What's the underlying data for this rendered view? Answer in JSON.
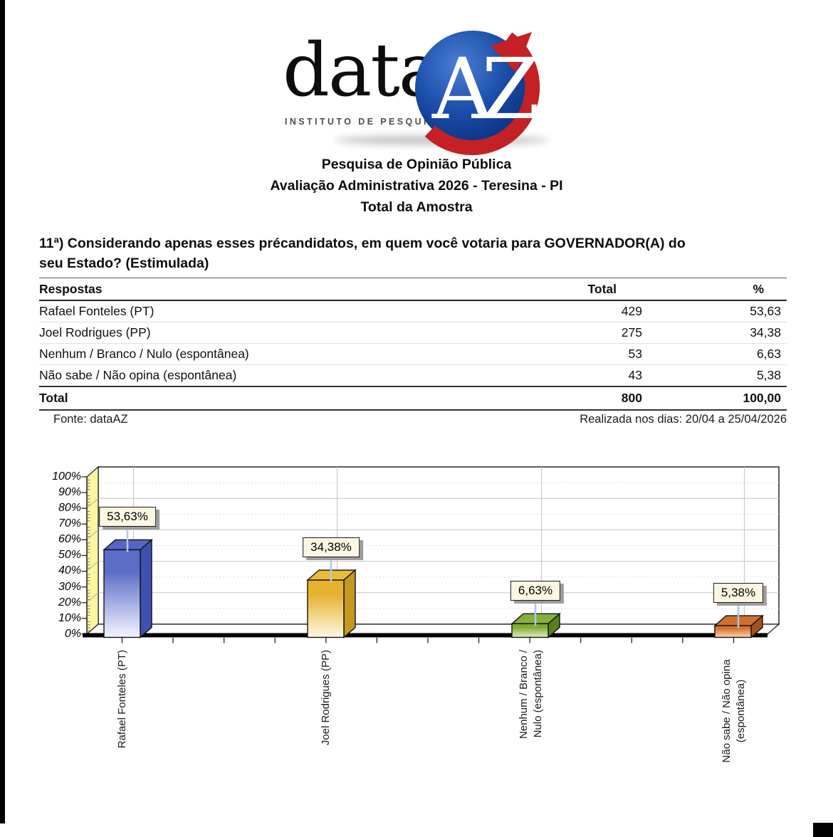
{
  "logo": {
    "brand_prefix": "data",
    "brand_suffix": "AZ",
    "tagline": "INSTITUTO DE PESQUISA",
    "circle_color": "#11409B",
    "arrow_color": "#C42127"
  },
  "header": {
    "line1": "Pesquisa de Opinião Pública",
    "line2": "Avaliação Administrativa 2026 - Teresina - PI",
    "line3": "Total da Amostra"
  },
  "question": {
    "text": "11ª) Considerando apenas esses précandidatos, em quem você votaria para GOVERNADOR(A) do\nseu Estado? (Estimulada)"
  },
  "table": {
    "headers": {
      "respostas": "Respostas",
      "total": "Total",
      "pct": "%"
    },
    "rows": [
      {
        "label": "Rafael Fonteles (PT)",
        "total": "429",
        "pct": "53,63"
      },
      {
        "label": "Joel Rodrigues (PP)",
        "total": "275",
        "pct": "34,38"
      },
      {
        "label": "Nenhum / Branco / Nulo (espontânea)",
        "total": "53",
        "pct": "6,63"
      },
      {
        "label": "Não sabe / Não opina (espontânea)",
        "total": "43",
        "pct": "5,38"
      }
    ],
    "total_row": {
      "label": "Total",
      "total": "800",
      "pct": "100,00"
    }
  },
  "footer": {
    "source": "Fonte: dataAZ",
    "dates": "Realizada nos dias: 20/04 a 25/04/2026"
  },
  "chart_data": {
    "type": "bar",
    "style": "3d",
    "title": "",
    "categories": [
      "Rafael Fonteles (PT)",
      "Joel Rodrigues (PP)",
      "Nenhum / Branco / Nulo (espontânea)",
      "Não sabe / Não opina (espontânea)"
    ],
    "categories_display": [
      "Rafael Fonteles (PT)",
      "Joel Rodrigues (PP)",
      "Nenhum / Branco /\nNulo (espontânea)",
      "Não sabe / Não opina\n(espontânea)"
    ],
    "values": [
      53.63,
      34.38,
      6.63,
      5.38
    ],
    "value_labels": [
      "53,63%",
      "34,38%",
      "6,63%",
      "5,38%"
    ],
    "xlabel": "",
    "ylabel": "",
    "ylim": [
      0,
      100
    ],
    "ytick_step": 10,
    "ytick_labels": [
      "100%",
      "90%",
      "80%",
      "70%",
      "60%",
      "50%",
      "40%",
      "30%",
      "20%",
      "10%",
      "0%"
    ],
    "grid": true,
    "legend": false,
    "wall_color": "#FAF5A3",
    "label_box_color": "#FBF7E1",
    "connector_color": "#A9CBE8",
    "bar_colors": [
      {
        "main": "#5B6EC7",
        "pale": "#F4F5FE",
        "side": "#3D51B2",
        "top": "#5565C4"
      },
      {
        "main": "#E6B22E",
        "pale": "#FDF8E6",
        "side": "#C3991F",
        "top": "#E8BC38"
      },
      {
        "main": "#7CAC30",
        "pale": "#DFEDC4",
        "side": "#55801B",
        "top": "#83B13A"
      },
      {
        "main": "#D9712A",
        "pale": "#F9D9B9",
        "side": "#A4511B",
        "top": "#D07030"
      }
    ]
  }
}
